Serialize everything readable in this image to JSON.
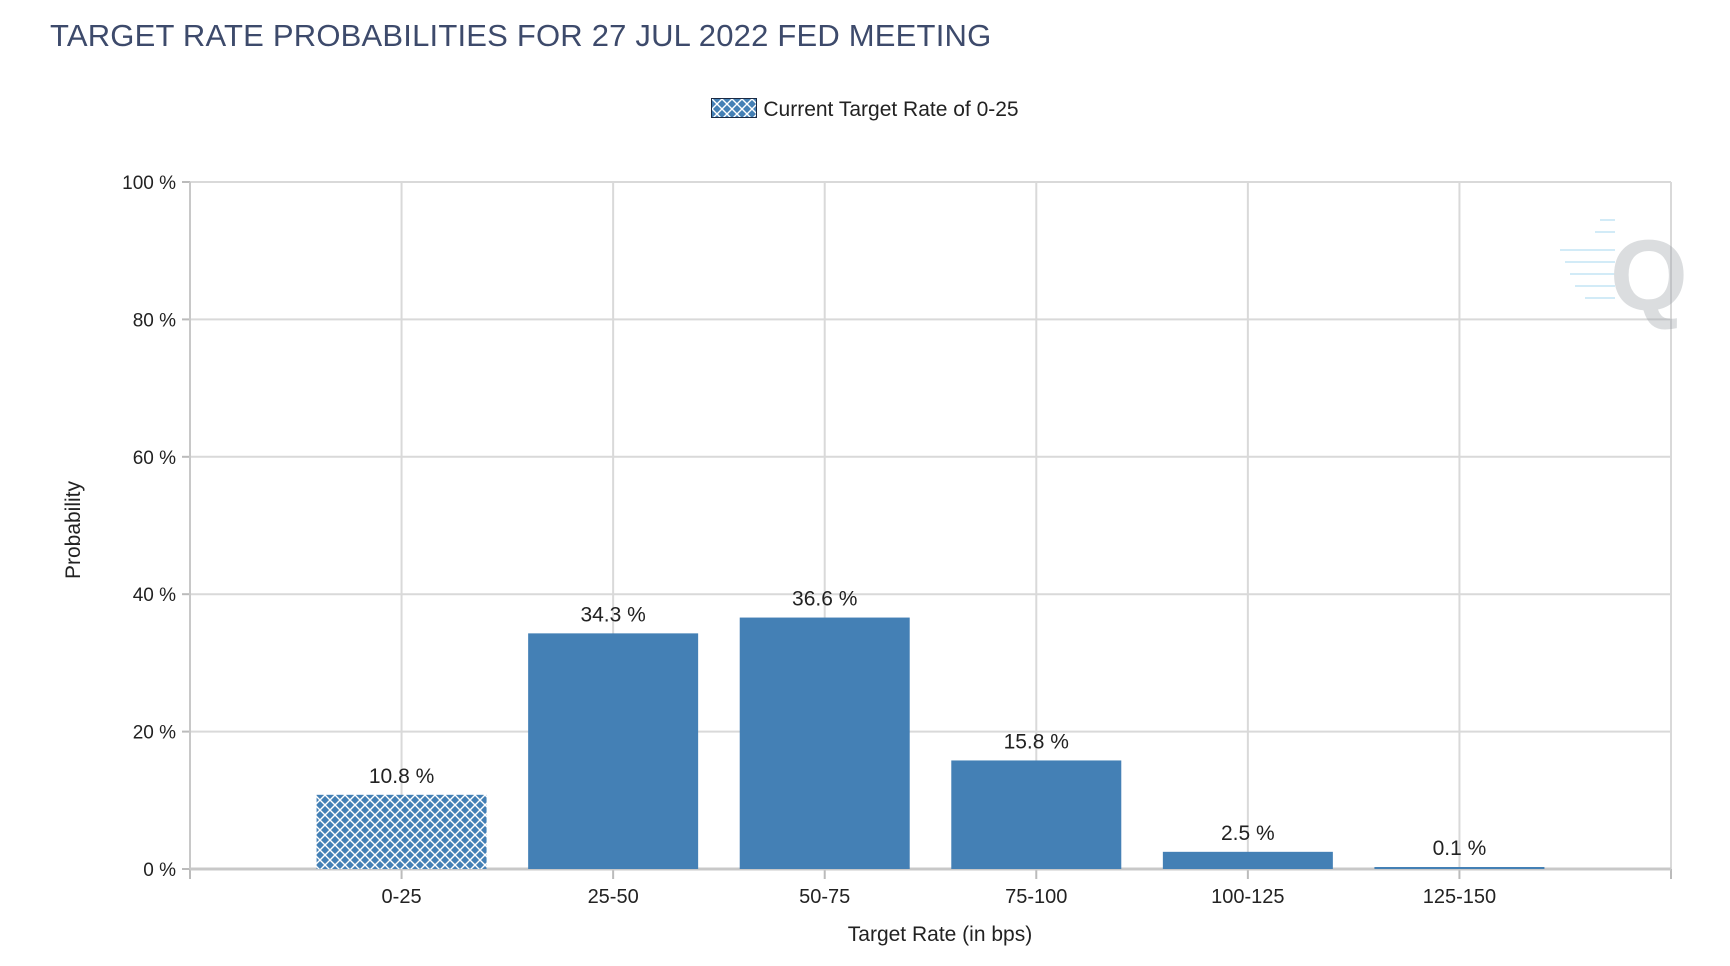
{
  "chart_data": {
    "type": "bar",
    "title": "TARGET RATE PROBABILITIES FOR 27 JUL 2022 FED MEETING",
    "legend": {
      "label": "Current Target Rate of 0-25",
      "placement": "top-center"
    },
    "xlabel": "Target Rate (in bps)",
    "ylabel": "Probability",
    "categories": [
      "0-25",
      "25-50",
      "50-75",
      "75-100",
      "100-125",
      "125-150"
    ],
    "values": [
      10.8,
      34.3,
      36.6,
      15.8,
      2.5,
      0.1
    ],
    "data_labels": [
      "10.8 %",
      "34.3 %",
      "36.6 %",
      "15.8 %",
      "2.5 %",
      "0.1 %"
    ],
    "current_category_index": 0,
    "ylim": [
      0,
      100
    ],
    "yticks": [
      0,
      20,
      40,
      60,
      80,
      100
    ],
    "ytick_labels": [
      "0 %",
      "20 %",
      "40 %",
      "60 %",
      "80 %",
      "100 %"
    ],
    "grid": true,
    "colors": {
      "bar": "#4480b5",
      "grid": "#d9d9d9",
      "title": "#3d4a6b"
    }
  }
}
